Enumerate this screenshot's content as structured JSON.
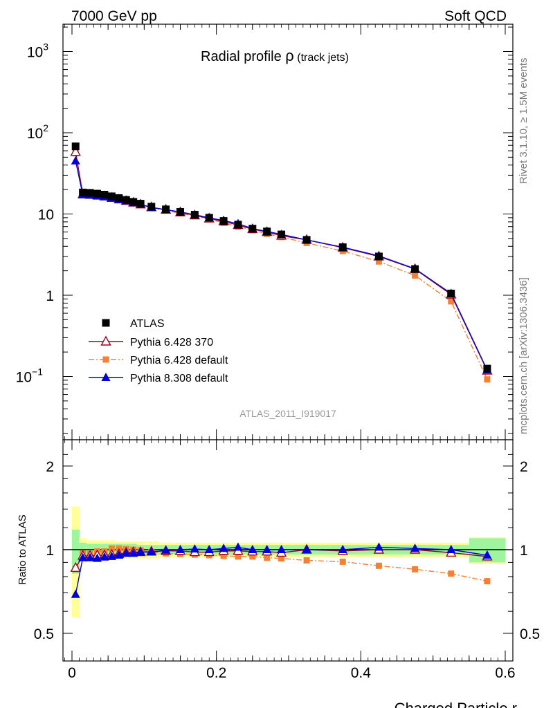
{
  "header": {
    "left": "7000 GeV pp",
    "right": "Soft QCD"
  },
  "side_labels": {
    "rivet": "Rivet 3.1.10, ≥ 1.5M events",
    "mcplots": "mcplots.cern.ch [arXiv:1306.3436]"
  },
  "title": {
    "main": "Radial profile ",
    "symbol": "ρ",
    "sub": " (track jets)"
  },
  "watermark": "ATLAS_2011_I919017",
  "legend": [
    "ATLAS",
    "Pythia 6.428 370",
    "Pythia 6.428 default",
    "Pythia 8.308 default"
  ],
  "colors": {
    "atlas": "#000000",
    "py6_370": "#a00022",
    "py6_default": "#f57f33",
    "py8": "#0000dd",
    "band_inner": "#9ef59e",
    "band_outer": "#ffff99"
  },
  "chart_data": [
    {
      "type": "scatter",
      "title": "Radial profile ρ (track jets)",
      "xlabel": "Charged Particle r",
      "ylabel": "",
      "yscale": "log",
      "xlim": [
        -0.01,
        0.6
      ],
      "ylim": [
        0.018,
        2200
      ],
      "y_ticks": [
        {
          "value": 1000,
          "label": "10",
          "sup": "3"
        },
        {
          "value": 100,
          "label": "10",
          "sup": "2"
        },
        {
          "value": 10,
          "label": "10",
          "sup": ""
        },
        {
          "value": 1,
          "label": "1",
          "sup": ""
        },
        {
          "value": 0.1,
          "label": "10",
          "sup": "−1"
        }
      ],
      "x": [
        0.005,
        0.015,
        0.025,
        0.035,
        0.045,
        0.055,
        0.065,
        0.075,
        0.085,
        0.095,
        0.11,
        0.13,
        0.15,
        0.17,
        0.19,
        0.21,
        0.23,
        0.25,
        0.27,
        0.29,
        0.325,
        0.375,
        0.425,
        0.475,
        0.525,
        0.575
      ],
      "series": [
        {
          "name": "ATLAS",
          "values": [
            68,
            18.4,
            18.2,
            17.8,
            17.3,
            16.5,
            15.7,
            14.9,
            14.1,
            13.4,
            12.3,
            11.4,
            10.6,
            9.8,
            9.0,
            8.2,
            7.4,
            6.6,
            6.1,
            5.6,
            4.8,
            3.9,
            3.0,
            2.1,
            1.05,
            0.125
          ]
        },
        {
          "name": "Pythia 6.428 370",
          "values": [
            58,
            17.5,
            17.2,
            17.0,
            16.5,
            15.8,
            15.1,
            14.5,
            13.8,
            13.1,
            12.1,
            11.3,
            10.5,
            9.6,
            8.8,
            8.1,
            7.3,
            6.5,
            6.0,
            5.4,
            4.8,
            3.85,
            3.0,
            2.1,
            1.02,
            0.118
          ]
        },
        {
          "name": "Pythia 6.428 default",
          "values": [
            56,
            17.6,
            17.3,
            17.2,
            17.0,
            16.6,
            15.8,
            15.0,
            14.1,
            13.3,
            12.0,
            11.0,
            10.2,
            9.4,
            8.6,
            7.8,
            7.0,
            6.3,
            5.7,
            5.2,
            4.4,
            3.5,
            2.6,
            1.75,
            0.84,
            0.092
          ]
        },
        {
          "name": "Pythia 8.308 default",
          "values": [
            45,
            17.2,
            17.0,
            16.6,
            16.2,
            15.6,
            15.0,
            14.5,
            13.7,
            13.1,
            12.0,
            11.3,
            10.6,
            9.8,
            9.0,
            8.3,
            7.6,
            6.6,
            6.1,
            5.6,
            4.8,
            3.9,
            3.05,
            2.12,
            1.05,
            0.12
          ]
        }
      ]
    },
    {
      "type": "line",
      "title": "",
      "xlabel": "Charged Particle r",
      "ylabel": "Ratio to ATLAS",
      "xlim": [
        -0.01,
        0.6
      ],
      "ylim": [
        0.35,
        2.35
      ],
      "x_ticks": [
        0,
        0.2,
        0.4,
        0.6
      ],
      "x_tick_labels": [
        "0",
        "0.2",
        "0.4",
        "0.6"
      ],
      "y_ticks": [
        0.5,
        1,
        2
      ],
      "y_tick_labels": [
        "0.5",
        "1",
        "2"
      ],
      "x_edges": [
        0.0,
        0.01,
        0.02,
        0.03,
        0.04,
        0.05,
        0.06,
        0.07,
        0.08,
        0.09,
        0.1,
        0.12,
        0.14,
        0.16,
        0.18,
        0.2,
        0.22,
        0.24,
        0.26,
        0.28,
        0.3,
        0.35,
        0.4,
        0.45,
        0.5,
        0.55,
        0.6
      ],
      "band_inner": [
        0.18,
        0.06,
        0.05,
        0.05,
        0.05,
        0.05,
        0.05,
        0.05,
        0.05,
        0.04,
        0.04,
        0.04,
        0.04,
        0.04,
        0.04,
        0.04,
        0.04,
        0.04,
        0.04,
        0.04,
        0.04,
        0.04,
        0.04,
        0.04,
        0.04,
        0.1
      ],
      "band_outer": [
        0.43,
        0.1,
        0.08,
        0.08,
        0.08,
        0.08,
        0.07,
        0.07,
        0.07,
        0.07,
        0.07,
        0.06,
        0.06,
        0.06,
        0.06,
        0.06,
        0.06,
        0.06,
        0.06,
        0.06,
        0.06,
        0.06,
        0.06,
        0.06,
        0.06,
        0.11
      ],
      "x": [
        0.005,
        0.015,
        0.025,
        0.035,
        0.045,
        0.055,
        0.065,
        0.075,
        0.085,
        0.095,
        0.11,
        0.13,
        0.15,
        0.17,
        0.19,
        0.21,
        0.23,
        0.25,
        0.27,
        0.29,
        0.325,
        0.375,
        0.425,
        0.475,
        0.525,
        0.575
      ],
      "series": [
        {
          "name": "Pythia 6.428 370",
          "values": [
            0.86,
            0.95,
            0.95,
            0.955,
            0.955,
            0.96,
            0.965,
            0.975,
            0.98,
            0.98,
            0.985,
            0.99,
            0.99,
            0.98,
            0.98,
            0.99,
            0.99,
            0.985,
            0.985,
            0.975,
            1.0,
            0.99,
            1.0,
            1.0,
            0.975,
            0.945
          ]
        },
        {
          "name": "Pythia 6.428 default",
          "values": [
            0.85,
            0.97,
            0.965,
            0.985,
            0.985,
            1.01,
            1.01,
            1.005,
            1.0,
            0.995,
            0.98,
            0.97,
            0.965,
            0.96,
            0.955,
            0.95,
            0.945,
            0.945,
            0.935,
            0.93,
            0.915,
            0.905,
            0.875,
            0.85,
            0.82,
            0.77
          ]
        },
        {
          "name": "Pythia 8.308 default",
          "values": [
            0.69,
            0.935,
            0.935,
            0.93,
            0.94,
            0.945,
            0.955,
            0.97,
            0.97,
            0.98,
            0.98,
            0.995,
            1.0,
            1.005,
            1.0,
            1.01,
            1.02,
            1.0,
            1.0,
            1.0,
            1.0,
            1.0,
            1.02,
            1.01,
            1.0,
            0.955
          ]
        }
      ]
    }
  ]
}
